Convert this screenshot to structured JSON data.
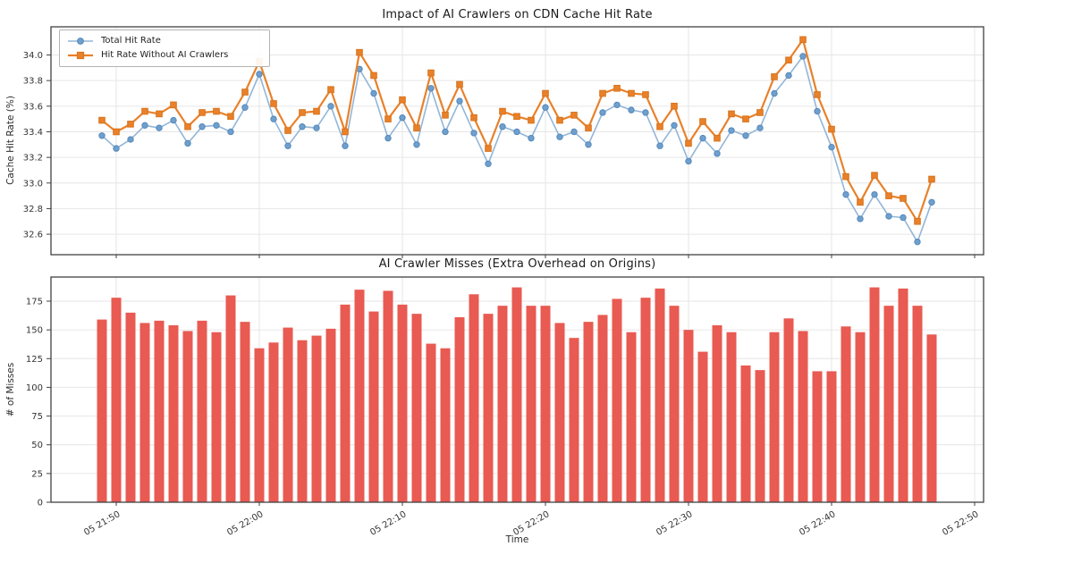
{
  "figure": {
    "background": "#ffffff"
  },
  "palette": {
    "grid": "#e6e6e6",
    "frame": "#424242",
    "tick_text": "#333333",
    "blue_line": "#92b6d8",
    "blue_marker": "#6fa0cd",
    "blue_marker_edge": "#5588bb",
    "orange": "#e8812a",
    "orange_edge": "#d9731c",
    "bar_red": "#e85a52"
  },
  "chart_data": [
    {
      "type": "line",
      "title": "Impact of AI Crawlers on CDN Cache Hit Rate",
      "xlabel": "",
      "ylabel": "Cache Hit Rate (%)",
      "ylim": [
        32.44,
        34.22
      ],
      "yticks": [
        "34.0",
        "33.8",
        "33.6",
        "33.4",
        "33.2",
        "33.0",
        "32.8",
        "32.6"
      ],
      "grid": true,
      "legend_position": "upper left",
      "x": [
        "05 21:49",
        "05 21:50",
        "05 21:51",
        "05 21:52",
        "05 21:53",
        "05 21:54",
        "05 21:55",
        "05 21:56",
        "05 21:57",
        "05 21:58",
        "05 21:59",
        "05 22:00",
        "05 22:01",
        "05 22:02",
        "05 22:03",
        "05 22:04",
        "05 22:05",
        "05 22:06",
        "05 22:07",
        "05 22:08",
        "05 22:09",
        "05 22:10",
        "05 22:11",
        "05 22:12",
        "05 22:13",
        "05 22:14",
        "05 22:15",
        "05 22:16",
        "05 22:17",
        "05 22:18",
        "05 22:19",
        "05 22:20",
        "05 22:21",
        "05 22:22",
        "05 22:23",
        "05 22:24",
        "05 22:25",
        "05 22:26",
        "05 22:27",
        "05 22:28",
        "05 22:29",
        "05 22:30",
        "05 22:31",
        "05 22:32",
        "05 22:33",
        "05 22:34",
        "05 22:35",
        "05 22:36",
        "05 22:37",
        "05 22:38",
        "05 22:39",
        "05 22:40",
        "05 22:41",
        "05 22:42",
        "05 22:43",
        "05 22:44",
        "05 22:45",
        "05 22:46",
        "05 22:47"
      ],
      "xticks": [
        "05 21:50",
        "05 22:00",
        "05 22:10",
        "05 22:20",
        "05 22:30",
        "05 22:40",
        "05 22:50"
      ],
      "series": [
        {
          "name": "Total Hit Rate",
          "marker": "circle",
          "line_color": "#92b6d8",
          "marker_color": "#6fa0cd",
          "marker_edge": "#5588bb",
          "values": [
            33.37,
            33.27,
            33.34,
            33.45,
            33.43,
            33.49,
            33.31,
            33.44,
            33.45,
            33.4,
            33.59,
            33.85,
            33.5,
            33.29,
            33.44,
            33.43,
            33.6,
            33.29,
            33.89,
            33.7,
            33.35,
            33.51,
            33.3,
            33.74,
            33.4,
            33.64,
            33.39,
            33.15,
            33.44,
            33.4,
            33.35,
            33.59,
            33.36,
            33.4,
            33.3,
            33.55,
            33.61,
            33.57,
            33.55,
            33.29,
            33.45,
            33.17,
            33.35,
            33.23,
            33.41,
            33.37,
            33.43,
            33.7,
            33.84,
            33.99,
            33.56,
            33.28,
            32.91,
            32.72,
            32.91,
            32.74,
            32.73,
            32.54,
            32.85
          ]
        },
        {
          "name": "Hit Rate Without AI Crawlers",
          "marker": "square",
          "line_color": "#e8812a",
          "marker_color": "#e8812a",
          "marker_edge": "#d9731c",
          "values": [
            33.49,
            33.4,
            33.46,
            33.56,
            33.54,
            33.61,
            33.44,
            33.55,
            33.56,
            33.52,
            33.71,
            33.95,
            33.62,
            33.41,
            33.55,
            33.56,
            33.73,
            33.4,
            34.02,
            33.84,
            33.5,
            33.65,
            33.43,
            33.86,
            33.53,
            33.77,
            33.51,
            33.27,
            33.56,
            33.52,
            33.49,
            33.7,
            33.49,
            33.53,
            33.43,
            33.7,
            33.74,
            33.7,
            33.69,
            33.44,
            33.6,
            33.31,
            33.48,
            33.35,
            33.54,
            33.5,
            33.55,
            33.83,
            33.96,
            34.12,
            33.69,
            33.42,
            33.05,
            32.85,
            33.06,
            32.9,
            32.88,
            32.7,
            33.03
          ]
        }
      ]
    },
    {
      "type": "bar",
      "title": "AI Crawler Misses (Extra Overhead on Origins)",
      "xlabel": "Time",
      "ylabel": "# of Misses",
      "ylim": [
        0,
        196
      ],
      "yticks": [
        "0",
        "25",
        "50",
        "75",
        "100",
        "125",
        "150",
        "175"
      ],
      "grid": true,
      "bar_color": "#e85a52",
      "values": [
        159,
        178,
        165,
        156,
        158,
        154,
        149,
        158,
        148,
        180,
        157,
        134,
        139,
        152,
        141,
        145,
        151,
        172,
        185,
        166,
        184,
        172,
        164,
        138,
        134,
        161,
        181,
        164,
        171,
        187,
        171,
        171,
        156,
        143,
        157,
        163,
        177,
        148,
        178,
        186,
        171,
        150,
        131,
        154,
        148,
        119,
        115,
        148,
        160,
        149,
        114,
        114,
        153,
        148,
        187,
        171,
        186,
        171,
        146
      ]
    }
  ]
}
